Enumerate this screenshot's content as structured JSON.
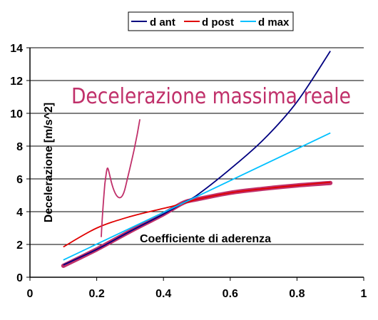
{
  "chart_data": {
    "type": "line",
    "xlim": [
      0,
      1
    ],
    "ylim": [
      0,
      14
    ],
    "x_ticks": [
      "0",
      "0.2",
      "0.4",
      "0.6",
      "0.8",
      "1"
    ],
    "y_ticks": [
      "0",
      "2",
      "4",
      "6",
      "8",
      "10",
      "12",
      "14"
    ],
    "xlabel": "Coefficiente di aderenza",
    "ylabel": "Decelerazione [m/s^2]",
    "grid": "horizontal",
    "legend_position": "top",
    "series": [
      {
        "name": "d ant",
        "color": "#000080",
        "x": [
          0.1,
          0.2,
          0.3,
          0.4,
          0.46,
          0.5,
          0.6,
          0.7,
          0.8,
          0.9
        ],
        "y": [
          0.75,
          1.7,
          2.8,
          3.85,
          4.55,
          5.0,
          6.6,
          8.4,
          10.7,
          13.8
        ]
      },
      {
        "name": "d post",
        "color": "#e00000",
        "x": [
          0.1,
          0.2,
          0.3,
          0.4,
          0.46,
          0.5,
          0.6,
          0.7,
          0.8,
          0.9
        ],
        "y": [
          1.85,
          3.0,
          3.7,
          4.2,
          4.5,
          4.75,
          5.15,
          5.4,
          5.6,
          5.8
        ]
      },
      {
        "name": "d max",
        "color": "#00c0ff",
        "x": [
          0.1,
          0.9
        ],
        "y": [
          1.05,
          8.8
        ]
      }
    ],
    "highlight_series": {
      "color": "#c0306a",
      "x": [
        0.1,
        0.2,
        0.3,
        0.4,
        0.46,
        0.5,
        0.6,
        0.7,
        0.8,
        0.9
      ],
      "y": [
        0.7,
        1.7,
        2.8,
        3.85,
        4.55,
        4.75,
        5.15,
        5.4,
        5.6,
        5.75
      ]
    },
    "annotation": {
      "text": "Decelerazione massima reale",
      "color": "#c0306a"
    }
  }
}
